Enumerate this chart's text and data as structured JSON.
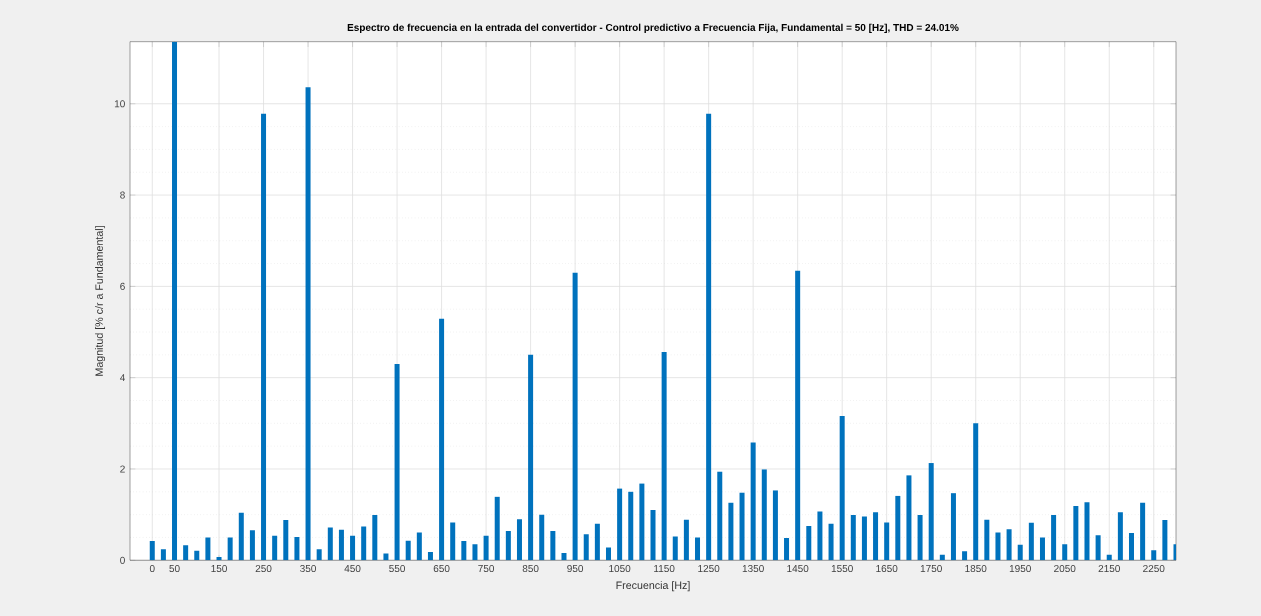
{
  "chart_data": {
    "type": "bar",
    "title": "Espectro de frecuencia en la entrada del convertidor - Control predictivo a Frecuencia Fija, Fundamental = 50 [Hz], THD = 24.01%",
    "xlabel": "Frecuencia [Hz]",
    "ylabel": "Magnitud [% c/r a Fundamental]",
    "x": [
      0,
      25,
      50,
      75,
      100,
      125,
      150,
      175,
      200,
      225,
      250,
      275,
      300,
      325,
      350,
      375,
      400,
      425,
      450,
      475,
      500,
      525,
      550,
      575,
      600,
      625,
      650,
      675,
      700,
      725,
      750,
      775,
      800,
      825,
      850,
      875,
      900,
      925,
      950,
      975,
      1000,
      1025,
      1050,
      1075,
      1100,
      1125,
      1150,
      1175,
      1200,
      1225,
      1250,
      1275,
      1300,
      1325,
      1350,
      1375,
      1400,
      1425,
      1450,
      1475,
      1500,
      1525,
      1550,
      1575,
      1600,
      1625,
      1650,
      1675,
      1700,
      1725,
      1750,
      1775,
      1800,
      1825,
      1850,
      1875,
      1900,
      1925,
      1950,
      1975,
      2000,
      2025,
      2050,
      2075,
      2100,
      2125,
      2150,
      2175,
      2200,
      2225,
      2250,
      2275,
      2300
    ],
    "values": [
      0.42,
      0.24,
      11.36,
      0.33,
      0.21,
      0.5,
      0.07,
      0.5,
      1.04,
      0.66,
      9.78,
      0.54,
      0.88,
      0.51,
      10.36,
      0.24,
      0.72,
      0.67,
      0.54,
      0.74,
      0.99,
      0.15,
      4.3,
      0.43,
      0.61,
      0.18,
      5.29,
      0.83,
      0.42,
      0.35,
      0.54,
      1.39,
      0.64,
      0.9,
      4.5,
      1.0,
      0.64,
      0.16,
      6.3,
      0.57,
      0.8,
      0.28,
      1.57,
      1.5,
      1.68,
      1.1,
      4.56,
      0.52,
      0.89,
      0.5,
      9.78,
      1.94,
      1.26,
      1.48,
      2.58,
      1.99,
      1.53,
      0.49,
      6.34,
      0.75,
      1.07,
      0.8,
      3.16,
      0.99,
      0.96,
      1.05,
      0.83,
      1.41,
      1.86,
      0.99,
      2.13,
      0.12,
      1.47,
      0.2,
      3.0,
      0.89,
      0.61,
      0.68,
      0.34,
      0.82,
      0.5,
      0.99,
      0.35,
      1.19,
      1.27,
      0.55,
      0.12,
      1.05,
      0.6,
      1.26,
      0.22,
      0.88,
      0.35
    ],
    "color": "#0072bd",
    "xlim": [
      -50,
      2300
    ],
    "ylim": [
      0,
      11.36
    ],
    "xticks": [
      0,
      50,
      150,
      250,
      350,
      450,
      550,
      650,
      750,
      850,
      950,
      1050,
      1150,
      1250,
      1350,
      1450,
      1550,
      1650,
      1750,
      1850,
      1950,
      2050,
      2150,
      2250
    ],
    "yticks": [
      0,
      2,
      4,
      6,
      8,
      10
    ],
    "grid": true
  }
}
